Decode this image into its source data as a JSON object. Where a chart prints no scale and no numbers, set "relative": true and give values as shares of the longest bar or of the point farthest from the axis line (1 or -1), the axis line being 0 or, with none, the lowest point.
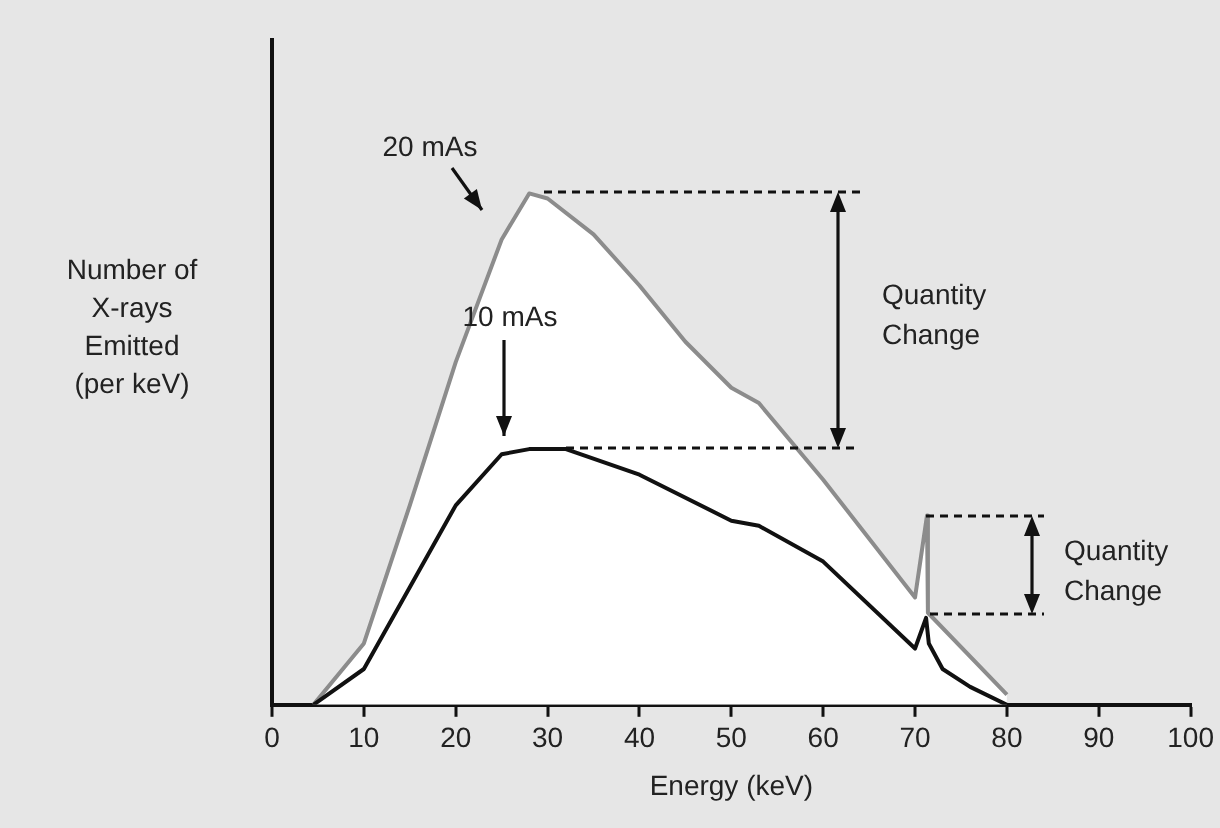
{
  "chart_data": {
    "type": "line",
    "relative": true,
    "xlabel": "Energy (keV)",
    "ylabel": "Number of X-rays Emitted (per keV)",
    "xlim": [
      0,
      100
    ],
    "xticks": [
      0,
      10,
      20,
      30,
      40,
      50,
      60,
      70,
      80,
      90,
      100
    ],
    "grid": false,
    "legend": false,
    "marker": "none",
    "line_style": "solid",
    "series": [
      {
        "type": "area",
        "color": "#8c8c8c",
        "x": [
          4.5,
          10,
          15,
          20,
          25,
          28,
          30,
          35,
          40,
          45,
          50,
          53,
          60,
          70,
          71.3,
          71.4,
          80
        ],
        "values": [
          0,
          0.12,
          0.39,
          0.67,
          0.91,
          1.0,
          0.99,
          0.92,
          0.82,
          0.71,
          0.62,
          0.59,
          0.44,
          0.21,
          0.37,
          0.18,
          0.02
        ]
      },
      {
        "type": "line",
        "color": "#111111",
        "x": [
          4.5,
          10,
          15,
          20,
          25,
          28,
          32,
          40,
          50,
          53,
          60,
          70,
          71.2,
          71.5,
          73,
          76,
          80
        ],
        "values": [
          0,
          0.07,
          0.23,
          0.39,
          0.49,
          0.5,
          0.5,
          0.45,
          0.36,
          0.35,
          0.28,
          0.11,
          0.17,
          0.12,
          0.07,
          0.035,
          0
        ]
      }
    ],
    "annotations": [
      "20 mAs",
      "10 mAs",
      "Quantity Change",
      "Quantity Change"
    ]
  }
}
